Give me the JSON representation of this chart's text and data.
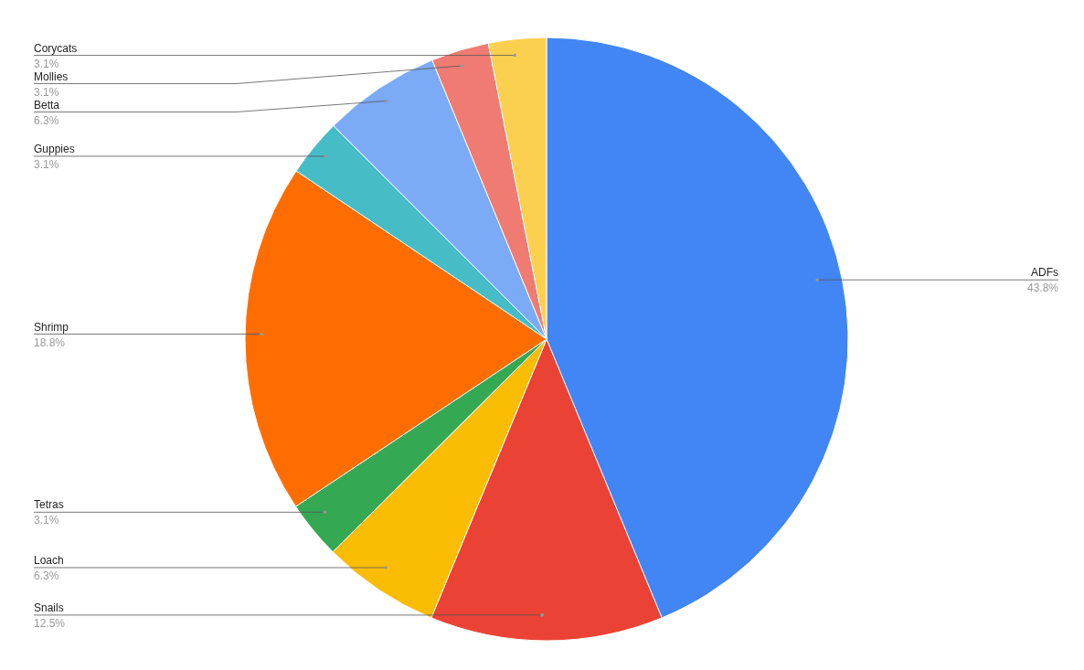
{
  "chart_data": {
    "type": "pie",
    "categories": [
      "ADFs",
      "Snails",
      "Loach",
      "Tetras",
      "Shrimp",
      "Guppies",
      "Betta",
      "Mollies",
      "Corycats"
    ],
    "values": [
      43.8,
      12.5,
      6.3,
      3.1,
      18.8,
      3.1,
      6.3,
      3.1,
      3.1
    ],
    "value_labels": [
      "43.8%",
      "12.5%",
      "6.3%",
      "3.1%",
      "18.8%",
      "3.1%",
      "6.3%",
      "3.1%",
      "3.1%"
    ],
    "colors": [
      "#4285f4",
      "#ea4335",
      "#fbbc04",
      "#34a853",
      "#ff6d01",
      "#46bdc6",
      "#7baaf7",
      "#f07b72",
      "#fcd04f"
    ],
    "legend": false
  }
}
